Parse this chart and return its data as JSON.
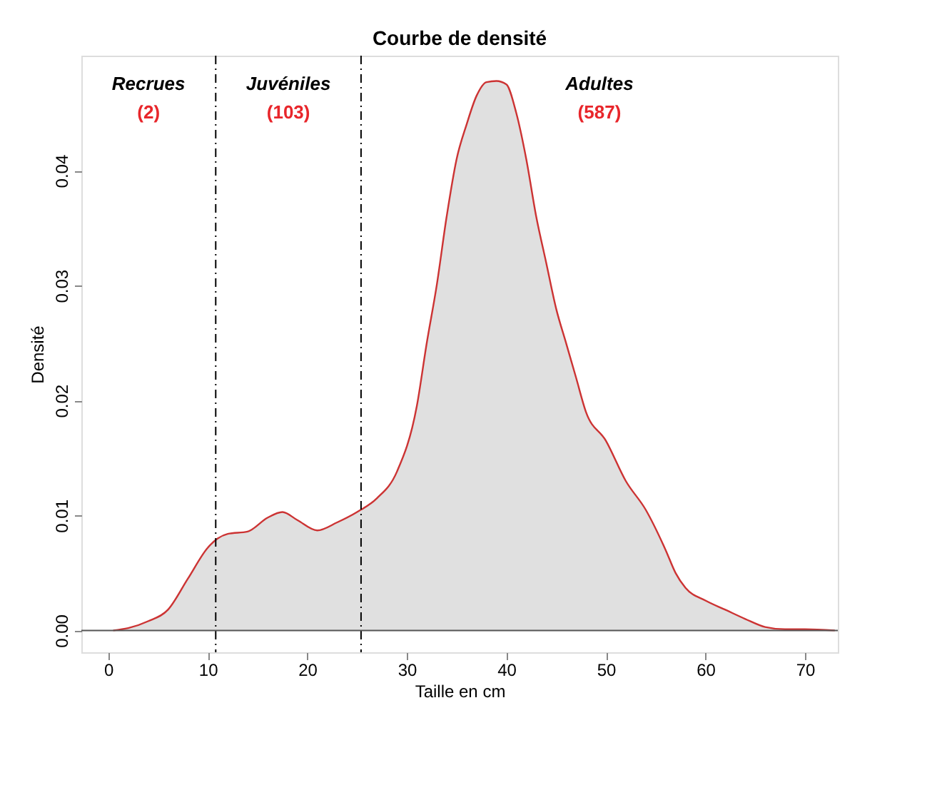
{
  "chart_data": {
    "type": "area",
    "title": "Courbe de densité",
    "xlabel": "Taille en cm",
    "ylabel": "Densité",
    "x": [
      0.5,
      2,
      4,
      6,
      8,
      10,
      11,
      12,
      14,
      16,
      17.5,
      19,
      21,
      23,
      25,
      27,
      29,
      31,
      32,
      33,
      34,
      35,
      36,
      37,
      38,
      39,
      40,
      41,
      42,
      43,
      44,
      45,
      46,
      47,
      48,
      50,
      52,
      54,
      56,
      57,
      58,
      60,
      62,
      64,
      66,
      68,
      70,
      73
    ],
    "series": [
      {
        "color": "#cc3333",
        "values": [
          0,
          0.0002,
          0.0008,
          0.0018,
          0.0045,
          0.0072,
          0.008,
          0.0084,
          0.0086,
          0.0098,
          0.0103,
          0.0096,
          0.0087,
          0.0094,
          0.0103,
          0.0115,
          0.0138,
          0.0195,
          0.025,
          0.03,
          0.036,
          0.041,
          0.044,
          0.0465,
          0.0477,
          0.0478,
          0.0475,
          0.045,
          0.041,
          0.036,
          0.032,
          0.028,
          0.025,
          0.022,
          0.019,
          0.0165,
          0.013,
          0.0105,
          0.007,
          0.005,
          0.0037,
          0.0026,
          0.0018,
          0.001,
          0.0003,
          0.0001,
          0.0001,
          0
        ]
      }
    ],
    "xlim": [
      -2.7,
      73.3
    ],
    "xticks": [
      0,
      10,
      20,
      30,
      40,
      50,
      60,
      70
    ],
    "ylim": [
      -0.0019,
      0.05
    ],
    "yticks": [
      {
        "value": 0,
        "label": "0.00"
      },
      {
        "value": 0.01,
        "label": "0.01"
      },
      {
        "value": 0.02,
        "label": "0.02"
      },
      {
        "value": 0.03,
        "label": "0.03"
      },
      {
        "value": 0.04,
        "label": "0.04"
      }
    ],
    "grid": false,
    "ref_lines": [
      {
        "axis": "x",
        "value": 10.8,
        "line_style": "dashdot",
        "color": "#000000"
      },
      {
        "axis": "x",
        "value": 25.4,
        "line_style": "dashdot",
        "color": "#000000"
      },
      {
        "axis": "y",
        "value": 0,
        "color": "#555555"
      }
    ],
    "annotations": [
      "Recrues",
      "(2)",
      "Juvéniles",
      "(103)",
      "Adultes",
      "(587)"
    ]
  }
}
